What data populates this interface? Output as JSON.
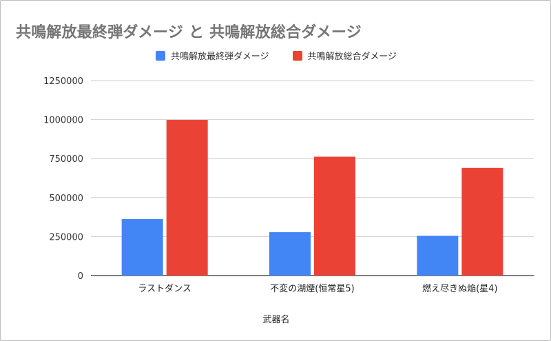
{
  "chart_data": {
    "type": "bar",
    "title": "共鳴解放最終弾ダメージ と 共鳴解放総合ダメージ",
    "xlabel": "武器名",
    "ylabel": "",
    "categories": [
      "ラストダンス",
      "不変の湖煙(恒常星5)",
      "燃え尽きぬ焔(星4)"
    ],
    "series": [
      {
        "name": "共鳴解放最終弾ダメージ",
        "color": "#4285f4",
        "values": [
          362000,
          278000,
          255000
        ]
      },
      {
        "name": "共鳴解放総合ダメージ",
        "color": "#ea4335",
        "values": [
          998000,
          762000,
          690000
        ]
      }
    ],
    "ylim": [
      0,
      1250000
    ],
    "yticks": [
      "0",
      "250000",
      "500000",
      "750000",
      "1000000",
      "1250000"
    ],
    "grid": true,
    "legend_position": "top"
  }
}
